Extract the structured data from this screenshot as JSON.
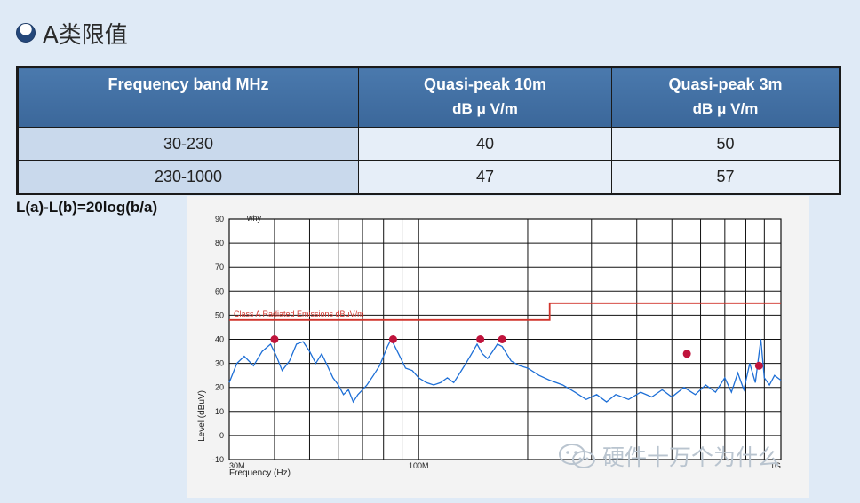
{
  "slide": {
    "title": "A类限值",
    "formula": "L(a)-L(b)=20log(b/a)"
  },
  "table": {
    "headers": [
      {
        "line1": "Frequency band MHz",
        "line2": ""
      },
      {
        "line1": "Quasi-peak 10m",
        "line2": "dB μ V/m"
      },
      {
        "line1": "Quasi-peak 3m",
        "line2": "dB μ V/m"
      }
    ],
    "rows": [
      [
        "30-230",
        "40",
        "50"
      ],
      [
        "230-1000",
        "47",
        "57"
      ]
    ]
  },
  "chart_data": {
    "type": "line",
    "corner_label": "why",
    "ylabel": "Level (dBuV)",
    "xlabel": "Frequency (Hz)",
    "xscale": "log",
    "xlim_mhz": [
      30,
      1000
    ],
    "ylim": [
      -10,
      90
    ],
    "grid": true,
    "y_ticks": [
      90,
      80,
      70,
      60,
      50,
      40,
      30,
      20,
      10,
      0,
      -10
    ],
    "x_tick_labels": [
      {
        "mhz": 30,
        "label": "30M"
      },
      {
        "mhz": 100,
        "label": "100M"
      },
      {
        "mhz": 1000,
        "label": "1G"
      }
    ],
    "limit_line": {
      "label": "Class A Radiated Emissions  dBuV/m",
      "color": "#d0342c",
      "points": [
        [
          30,
          48
        ],
        [
          230,
          48
        ],
        [
          230,
          55
        ],
        [
          1000,
          55
        ]
      ]
    },
    "measurement": {
      "color": "#1e6fd6",
      "points": [
        [
          30,
          22
        ],
        [
          31.5,
          30
        ],
        [
          33,
          33
        ],
        [
          35,
          29
        ],
        [
          37,
          35
        ],
        [
          39,
          38
        ],
        [
          40.5,
          33
        ],
        [
          42,
          27
        ],
        [
          44,
          31
        ],
        [
          46,
          38
        ],
        [
          48,
          39
        ],
        [
          50,
          35
        ],
        [
          52,
          30
        ],
        [
          54,
          34
        ],
        [
          56,
          29
        ],
        [
          58,
          24
        ],
        [
          60,
          21
        ],
        [
          62,
          17
        ],
        [
          64,
          19
        ],
        [
          66,
          14
        ],
        [
          68,
          17
        ],
        [
          70,
          19
        ],
        [
          72,
          21
        ],
        [
          75,
          25
        ],
        [
          78,
          29
        ],
        [
          80,
          33
        ],
        [
          82,
          37
        ],
        [
          84,
          40
        ],
        [
          86,
          37
        ],
        [
          88,
          34
        ],
        [
          92,
          28
        ],
        [
          96,
          27
        ],
        [
          100,
          24
        ],
        [
          105,
          22
        ],
        [
          110,
          21
        ],
        [
          115,
          22
        ],
        [
          120,
          24
        ],
        [
          125,
          22
        ],
        [
          130,
          26
        ],
        [
          135,
          30
        ],
        [
          140,
          34
        ],
        [
          145,
          38
        ],
        [
          150,
          34
        ],
        [
          155,
          32
        ],
        [
          160,
          35
        ],
        [
          165,
          38
        ],
        [
          170,
          37
        ],
        [
          175,
          34
        ],
        [
          180,
          31
        ],
        [
          190,
          29
        ],
        [
          200,
          28
        ],
        [
          215,
          25
        ],
        [
          230,
          23
        ],
        [
          250,
          21
        ],
        [
          270,
          18
        ],
        [
          290,
          15
        ],
        [
          310,
          17
        ],
        [
          330,
          14
        ],
        [
          350,
          17
        ],
        [
          380,
          15
        ],
        [
          410,
          18
        ],
        [
          440,
          16
        ],
        [
          470,
          19
        ],
        [
          500,
          16
        ],
        [
          540,
          20
        ],
        [
          580,
          17
        ],
        [
          620,
          21
        ],
        [
          660,
          18
        ],
        [
          700,
          24
        ],
        [
          730,
          18
        ],
        [
          760,
          26
        ],
        [
          790,
          19
        ],
        [
          820,
          30
        ],
        [
          850,
          22
        ],
        [
          880,
          40
        ],
        [
          900,
          24
        ],
        [
          930,
          21
        ],
        [
          960,
          25
        ],
        [
          1000,
          23
        ]
      ]
    },
    "peaks": {
      "color": "#c0143c",
      "points": [
        [
          40,
          40
        ],
        [
          85,
          40
        ],
        [
          148,
          40
        ],
        [
          170,
          40
        ],
        [
          550,
          34
        ],
        [
          870,
          29
        ]
      ]
    }
  },
  "watermark": {
    "text": "硬件十万个为什么"
  }
}
